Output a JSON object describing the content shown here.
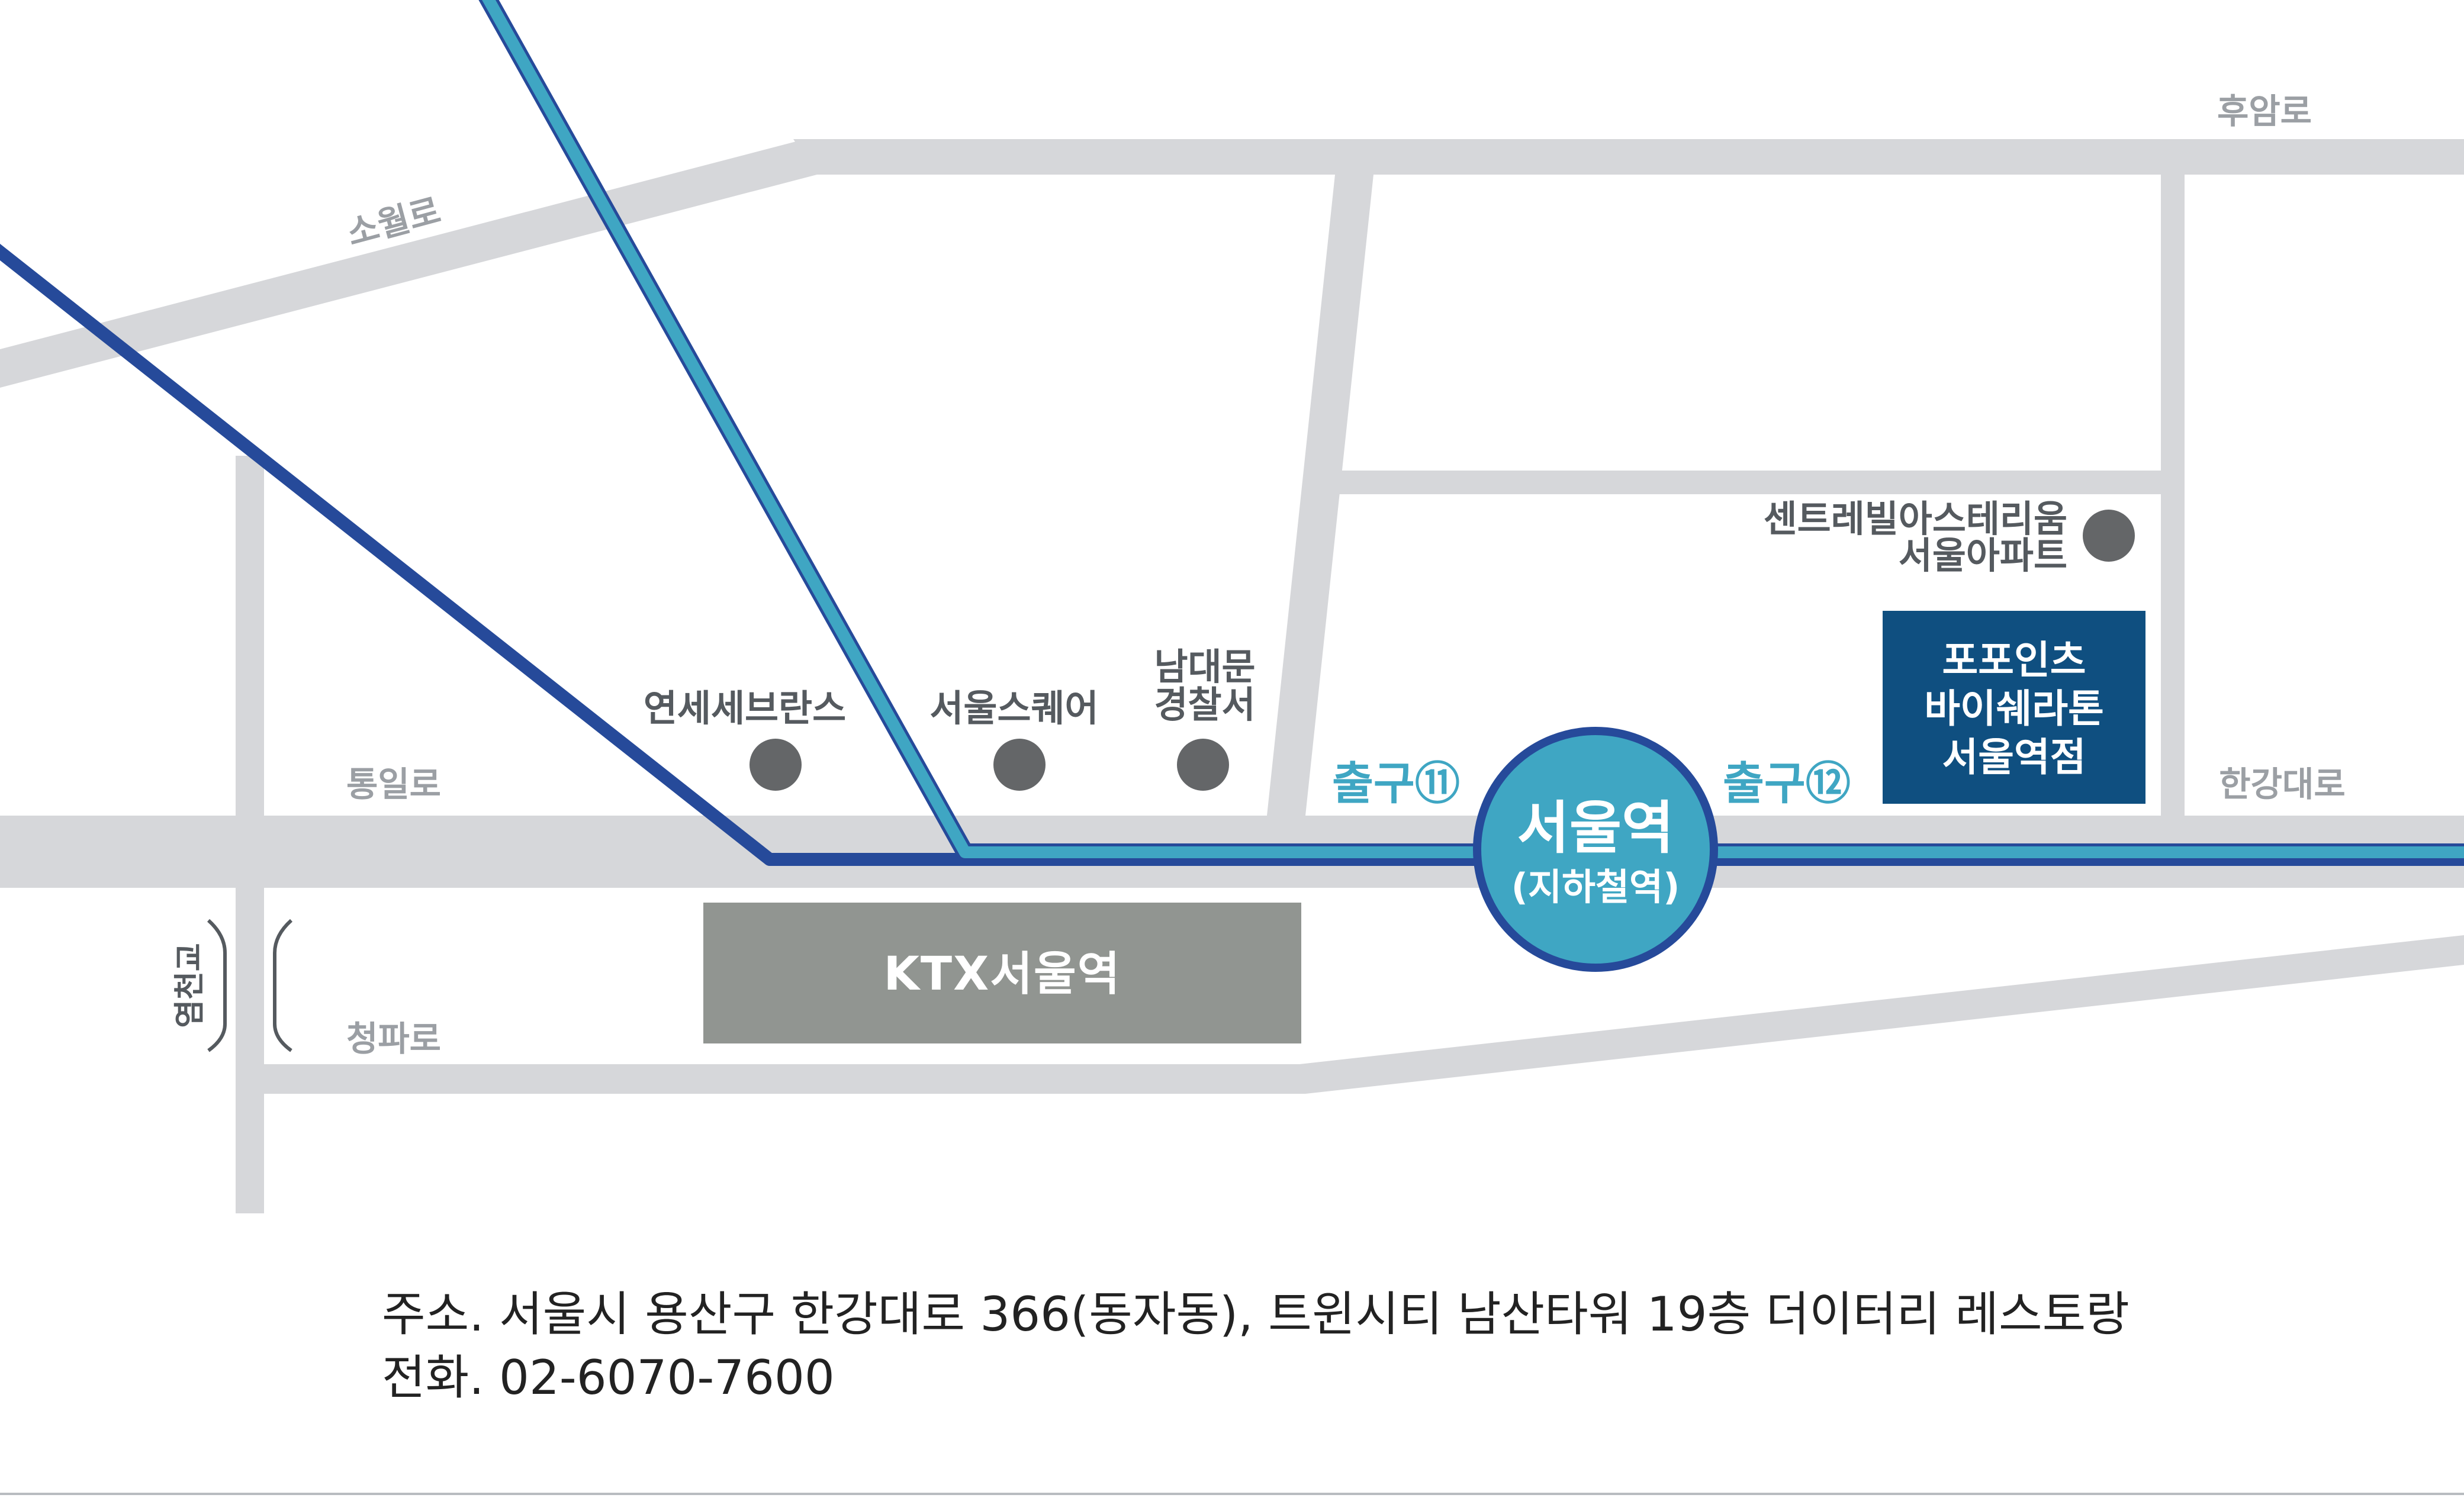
{
  "colors": {
    "road": "#d6d7da",
    "line1": "#264a9a",
    "line4": "#3fa6c3",
    "hotel_box": "#0f4f80",
    "ktx_box": "#919591",
    "landmark_dot": "#646668",
    "road_label": "#9b9fa4",
    "place_label": "#555a5f",
    "exit_label": "#3fa6c3",
    "station_fill": "#3fa6c3",
    "station_border": "#264a9a",
    "footer_line": "#b8bcc0"
  },
  "roads": {
    "huam_ro": "후암로",
    "sowol_ro": "소월로",
    "tongil_ro": "통일로",
    "hangang_daero": "한강대로",
    "cheongpa_ro": "청파로",
    "yeomcheon_gyo": "염천교"
  },
  "landmarks": {
    "severance": "연세세브란스",
    "seoul_square": "서울스퀘어",
    "police_line1": "남대문",
    "police_line2": "경찰서",
    "apartment_line1": "센트레빌아스테리움",
    "apartment_line2": "서울아파트"
  },
  "station": {
    "name": "서울역",
    "sub": "(지하철역)",
    "exit11": "출구⑪",
    "exit12": "출구⑫"
  },
  "hotel": {
    "line1": "포포인츠",
    "line2": "바이쉐라톤",
    "line3": "서울역점"
  },
  "ktx": {
    "label": "KTX서울역"
  },
  "info": {
    "address": "주소. 서울시 용산구 한강대로 366(동자동), 트윈시티 남산타워 19층 더이터리 레스토랑",
    "phone": "전화. 02-6070-7600"
  }
}
